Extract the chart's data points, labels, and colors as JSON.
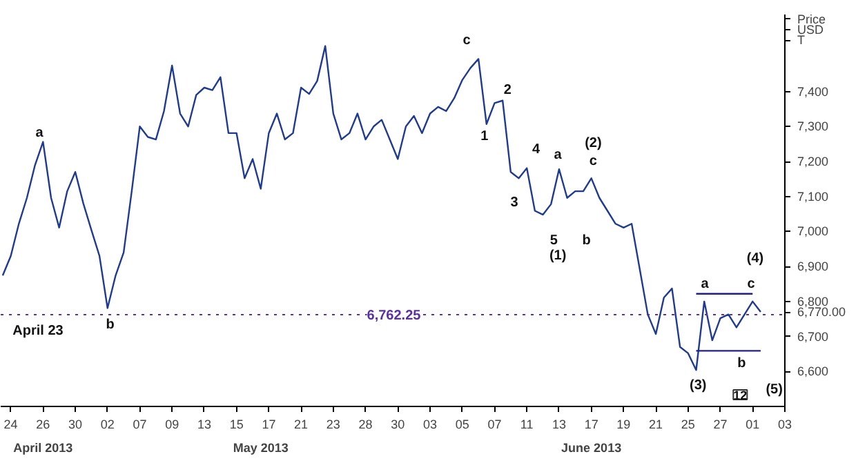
{
  "chart_data": {
    "type": "line",
    "ylabel": "Price\nUSD\nT",
    "categories": [
      null,
      "24",
      null,
      null,
      null,
      "26",
      null,
      null,
      null,
      "30",
      null,
      null,
      null,
      "02",
      null,
      null,
      null,
      "07",
      null,
      null,
      null,
      "09",
      null,
      null,
      null,
      "13",
      null,
      null,
      null,
      "15",
      null,
      null,
      null,
      "17",
      null,
      null,
      null,
      "21",
      null,
      null,
      null,
      "23",
      null,
      null,
      null,
      "28",
      null,
      null,
      null,
      "30",
      null,
      null,
      null,
      "03",
      null,
      null,
      null,
      "05",
      null,
      null,
      null,
      "07",
      null,
      null,
      null,
      "11",
      null,
      null,
      null,
      "13",
      null,
      null,
      null,
      "17",
      null,
      null,
      null,
      "19",
      null,
      null,
      null,
      "21",
      null,
      null,
      null,
      "25",
      null,
      null,
      null,
      "27",
      null,
      null,
      null,
      "01",
      null,
      null,
      null,
      "03"
    ],
    "series": [
      {
        "color": "#1f3a93",
        "values": [
          6874,
          6930,
          7022,
          7096,
          7189,
          7256,
          7096,
          7011,
          7115,
          7170,
          7080,
          7004,
          6930,
          6781,
          6874,
          6940,
          7115,
          7300,
          7270,
          7263,
          7344,
          7474,
          7337,
          7300,
          7390,
          7411,
          7404,
          7441,
          7281,
          7281,
          7152,
          7207,
          7122,
          7281,
          7337,
          7263,
          7281,
          7411,
          7393,
          7430,
          7530,
          7337,
          7263,
          7281,
          7337,
          7263,
          7300,
          7319,
          7263,
          7207,
          7300,
          7330,
          7281,
          7337,
          7356,
          7344,
          7381,
          7433,
          7467,
          7493,
          7307,
          7367,
          7374,
          7170,
          7152,
          7181,
          7059,
          7048,
          7078,
          7178,
          7096,
          7115,
          7115,
          7152,
          7096,
          7059,
          7022,
          7011,
          7022,
          6893,
          6763,
          6707,
          6811,
          6837,
          6670,
          6652,
          6604,
          6800,
          6689,
          6752,
          6763,
          6726,
          6763,
          6800,
          6770,
          null,
          null,
          null
        ]
      },
      {
        "type": "line",
        "color": "#1f1f8f",
        "values": [
          null,
          null,
          null,
          null,
          null,
          null,
          null,
          null,
          null,
          null,
          null,
          null,
          null,
          null,
          null,
          null,
          null,
          null,
          null,
          null,
          null,
          null,
          null,
          null,
          null,
          null,
          null,
          null,
          null,
          null,
          null,
          null,
          null,
          null,
          null,
          null,
          null,
          null,
          null,
          null,
          null,
          null,
          null,
          null,
          null,
          null,
          null,
          null,
          null,
          null,
          null,
          null,
          null,
          null,
          null,
          null,
          null,
          null,
          null,
          null,
          null,
          null,
          null,
          null,
          null,
          null,
          null,
          null,
          null,
          null,
          null,
          null,
          null,
          null,
          null,
          null,
          null,
          null,
          null,
          null,
          null,
          null,
          null,
          null,
          null,
          null,
          6822,
          6822,
          6822,
          6822,
          6822,
          6822,
          6822,
          6822,
          null,
          null,
          null,
          null
        ]
      },
      {
        "type": "line",
        "color": "#1f1f8f",
        "values": [
          null,
          null,
          null,
          null,
          null,
          null,
          null,
          null,
          null,
          null,
          null,
          null,
          null,
          null,
          null,
          null,
          null,
          null,
          null,
          null,
          null,
          null,
          null,
          null,
          null,
          null,
          null,
          null,
          null,
          null,
          null,
          null,
          null,
          null,
          null,
          null,
          null,
          null,
          null,
          null,
          null,
          null,
          null,
          null,
          null,
          null,
          null,
          null,
          null,
          null,
          null,
          null,
          null,
          null,
          null,
          null,
          null,
          null,
          null,
          null,
          null,
          null,
          null,
          null,
          null,
          null,
          null,
          null,
          null,
          null,
          null,
          null,
          null,
          null,
          null,
          null,
          null,
          null,
          null,
          null,
          null,
          null,
          null,
          null,
          null,
          null,
          6659,
          6659,
          6659,
          6659,
          6659,
          6659,
          6659,
          6659,
          6659,
          null,
          null,
          null
        ]
      }
    ],
    "ylim": [
      6500,
      7620
    ],
    "yticks": [
      {
        "value": 6600,
        "label": "6,600"
      },
      {
        "value": 6700,
        "label": "6,700"
      },
      {
        "value": 6770,
        "label": "6,770.00"
      },
      {
        "value": 6800,
        "label": "6,800"
      },
      {
        "value": 6900,
        "label": "6,900"
      },
      {
        "value": 7000,
        "label": "7,000"
      },
      {
        "value": 7100,
        "label": "7,100"
      },
      {
        "value": 7200,
        "label": "7,200"
      },
      {
        "value": 7300,
        "label": "7,300"
      },
      {
        "value": 7400,
        "label": "7,400"
      }
    ],
    "ref_lines": [
      {
        "axis": "y",
        "value": 6762.25,
        "label": "6,762.25",
        "color": "#5b2fa8",
        "line_style": "dotted"
      }
    ],
    "annotations": [
      "a",
      "b",
      "April 23",
      "c",
      "2",
      "1",
      "4",
      "3",
      "a",
      "(2)",
      "c",
      "5",
      "(1)",
      "b",
      "a",
      "c",
      "(4)",
      "b",
      "(3)",
      "(5)",
      "April 2013",
      "May 2013",
      "June 2013",
      "12"
    ],
    "grid": false,
    "marker": "none",
    "line_style": "solid"
  }
}
